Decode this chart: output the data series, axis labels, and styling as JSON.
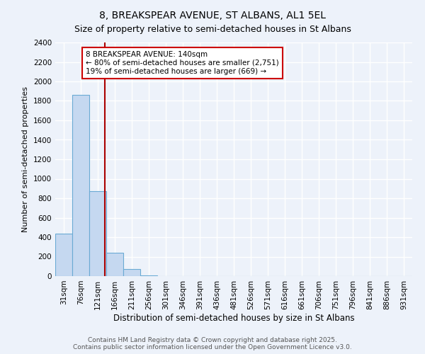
{
  "title": "8, BREAKSPEAR AVENUE, ST ALBANS, AL1 5EL",
  "subtitle": "Size of property relative to semi-detached houses in St Albans",
  "xlabel": "Distribution of semi-detached houses by size in St Albans",
  "ylabel": "Number of semi-detached properties",
  "categories": [
    "31sqm",
    "76sqm",
    "121sqm",
    "166sqm",
    "211sqm",
    "256sqm",
    "301sqm",
    "346sqm",
    "391sqm",
    "436sqm",
    "481sqm",
    "526sqm",
    "571sqm",
    "616sqm",
    "661sqm",
    "706sqm",
    "751sqm",
    "796sqm",
    "841sqm",
    "886sqm",
    "931sqm"
  ],
  "values": [
    440,
    1860,
    870,
    240,
    70,
    10,
    3,
    2,
    1,
    0,
    0,
    0,
    0,
    0,
    0,
    0,
    0,
    0,
    0,
    0,
    0
  ],
  "bar_color": "#c5d8f0",
  "bar_edge_color": "#6aaad4",
  "property_line_x": 2.42,
  "property_line_color": "#aa0000",
  "annotation_text": "8 BREAKSPEAR AVENUE: 140sqm\n← 80% of semi-detached houses are smaller (2,751)\n19% of semi-detached houses are larger (669) →",
  "annotation_box_color": "#ffffff",
  "annotation_box_edge_color": "#cc0000",
  "ylim": [
    0,
    2400
  ],
  "yticks": [
    0,
    200,
    400,
    600,
    800,
    1000,
    1200,
    1400,
    1600,
    1800,
    2000,
    2200,
    2400
  ],
  "background_color": "#edf2fa",
  "grid_color": "#ffffff",
  "footer_text": "Contains HM Land Registry data © Crown copyright and database right 2025.\nContains public sector information licensed under the Open Government Licence v3.0.",
  "title_fontsize": 10,
  "subtitle_fontsize": 9,
  "xlabel_fontsize": 8.5,
  "ylabel_fontsize": 8,
  "tick_fontsize": 7.5,
  "annotation_fontsize": 7.5,
  "footer_fontsize": 6.5
}
